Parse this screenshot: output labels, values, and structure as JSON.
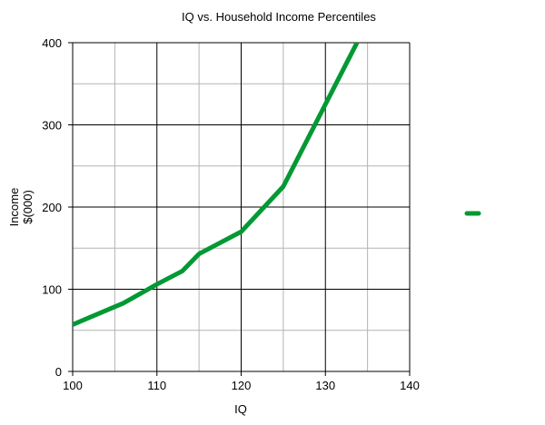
{
  "chart_data": {
    "type": "line",
    "title": "IQ vs. Household Income Percentiles",
    "xlabel": "IQ",
    "ylabel": [
      "Income",
      "$(000)"
    ],
    "xlim": [
      100,
      140
    ],
    "ylim": [
      0,
      400
    ],
    "xticks": [
      100,
      110,
      120,
      130,
      140
    ],
    "yticks": [
      0,
      100,
      200,
      300,
      400
    ],
    "grid": true,
    "legend": "right",
    "series": [
      {
        "color": "#009933",
        "points": [
          [
            100,
            57
          ],
          [
            106,
            83
          ],
          [
            110,
            106
          ],
          [
            113,
            122
          ],
          [
            115,
            143
          ],
          [
            120,
            170
          ],
          [
            125,
            225
          ],
          [
            134,
            405
          ]
        ]
      }
    ]
  }
}
